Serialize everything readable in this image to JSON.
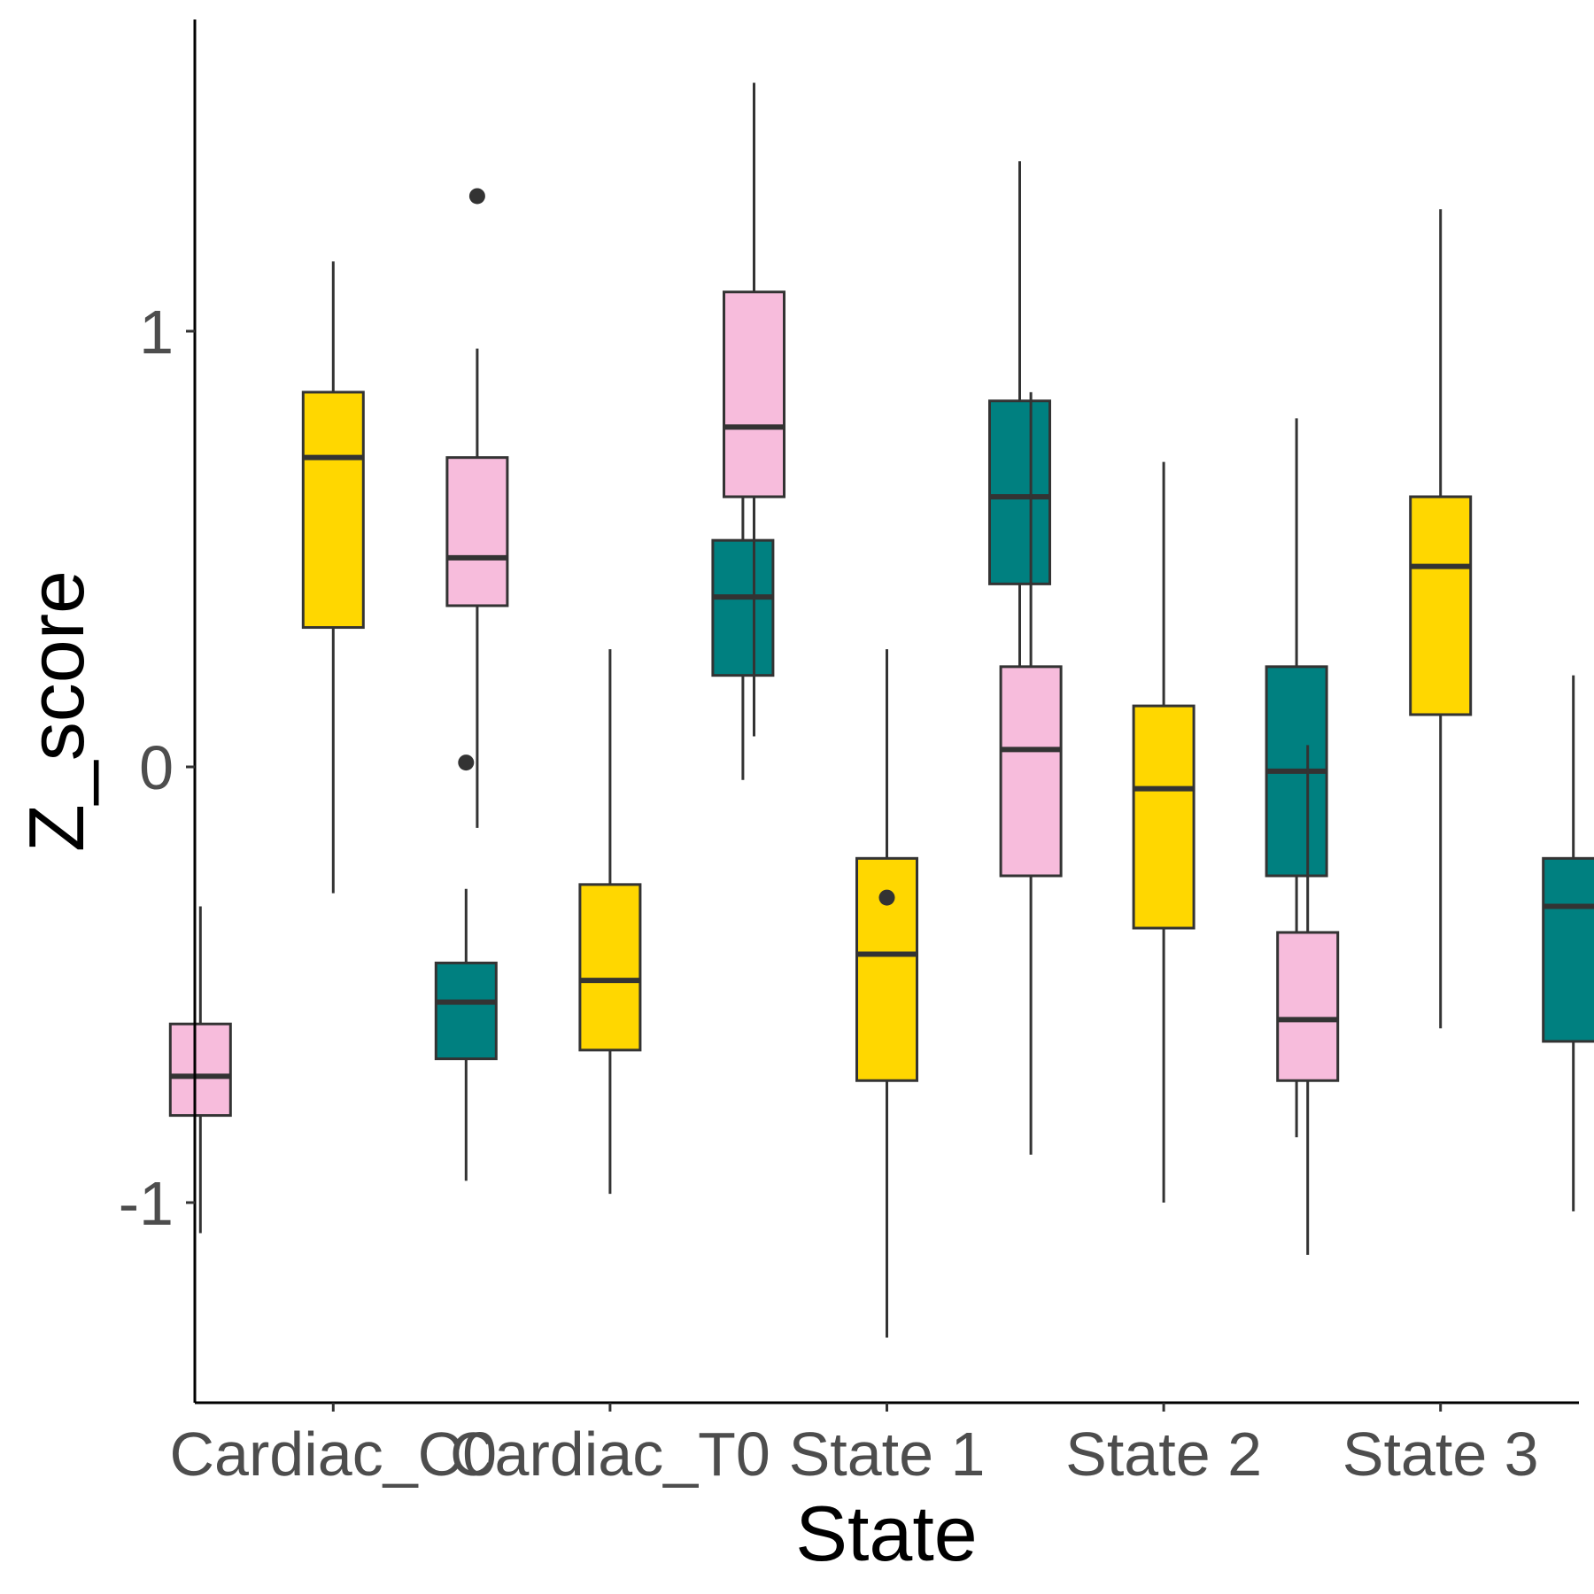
{
  "chart_data": {
    "type": "boxplot",
    "title": "",
    "xlabel": "State",
    "ylabel": "Z_score",
    "ylim": [
      -1.45,
      1.72
    ],
    "yticks": [
      -1,
      0,
      1
    ],
    "ytick_labels": [
      "-1",
      "0",
      "1"
    ],
    "categories": [
      "Cardiac_C0",
      "Cardiac_T0",
      "State 1",
      "State 2",
      "State 3"
    ],
    "grid": false,
    "legend": "none",
    "group_colors": [
      "#F7BCDC",
      "#FFD700",
      "#008080"
    ],
    "groups": [
      {
        "category": "Cardiac_C0",
        "boxes": [
          {
            "fill": "#F7BCDC",
            "whisker_low": -1.07,
            "q1": -0.8,
            "median": -0.71,
            "q3": -0.59,
            "whisker_high": -0.32,
            "outliers": []
          },
          {
            "fill": "#FFD700",
            "whisker_low": -0.29,
            "q1": 0.32,
            "median": 0.71,
            "q3": 0.86,
            "whisker_high": 1.16,
            "outliers": []
          },
          {
            "fill": "#008080",
            "whisker_low": -0.95,
            "q1": -0.67,
            "median": -0.54,
            "q3": -0.45,
            "whisker_high": -0.28,
            "outliers": [
              0.01
            ]
          }
        ]
      },
      {
        "category": "Cardiac_T0",
        "boxes": [
          {
            "fill": "#F7BCDC",
            "whisker_low": -0.14,
            "q1": 0.37,
            "median": 0.48,
            "q3": 0.71,
            "whisker_high": 0.96,
            "outliers": [
              1.31
            ]
          },
          {
            "fill": "#FFD700",
            "whisker_low": -0.98,
            "q1": -0.65,
            "median": -0.49,
            "q3": -0.27,
            "whisker_high": 0.27,
            "outliers": []
          },
          {
            "fill": "#008080",
            "whisker_low": -0.03,
            "q1": 0.21,
            "median": 0.39,
            "q3": 0.52,
            "whisker_high": 0.87,
            "outliers": [
              1.03
            ]
          }
        ]
      },
      {
        "category": "State 1",
        "boxes": [
          {
            "fill": "#F7BCDC",
            "whisker_low": 0.07,
            "q1": 0.62,
            "median": 0.78,
            "q3": 1.09,
            "whisker_high": 1.57,
            "outliers": []
          },
          {
            "fill": "#FFD700",
            "whisker_low": -1.31,
            "q1": -0.72,
            "median": -0.43,
            "q3": -0.21,
            "whisker_high": 0.27,
            "outliers": [
              -0.3
            ]
          },
          {
            "fill": "#008080",
            "whisker_low": 0.11,
            "q1": 0.42,
            "median": 0.62,
            "q3": 0.84,
            "whisker_high": 1.39,
            "outliers": []
          }
        ]
      },
      {
        "category": "State 2",
        "boxes": [
          {
            "fill": "#F7BCDC",
            "whisker_low": -0.89,
            "q1": -0.25,
            "median": 0.04,
            "q3": 0.23,
            "whisker_high": 0.86,
            "outliers": []
          },
          {
            "fill": "#FFD700",
            "whisker_low": -1.0,
            "q1": -0.37,
            "median": -0.05,
            "q3": 0.14,
            "whisker_high": 0.7,
            "outliers": []
          },
          {
            "fill": "#008080",
            "whisker_low": -0.85,
            "q1": -0.25,
            "median": -0.01,
            "q3": 0.23,
            "whisker_high": 0.8,
            "outliers": []
          }
        ]
      },
      {
        "category": "State 3",
        "boxes": [
          {
            "fill": "#F7BCDC",
            "whisker_low": -1.12,
            "q1": -0.72,
            "median": -0.58,
            "q3": -0.38,
            "whisker_high": 0.05,
            "outliers": []
          },
          {
            "fill": "#FFD700",
            "whisker_low": -0.6,
            "q1": 0.12,
            "median": 0.46,
            "q3": 0.62,
            "whisker_high": 1.28,
            "outliers": []
          },
          {
            "fill": "#008080",
            "whisker_low": -1.02,
            "q1": -0.63,
            "median": -0.32,
            "q3": -0.21,
            "whisker_high": 0.21,
            "outliers": []
          }
        ]
      }
    ]
  }
}
